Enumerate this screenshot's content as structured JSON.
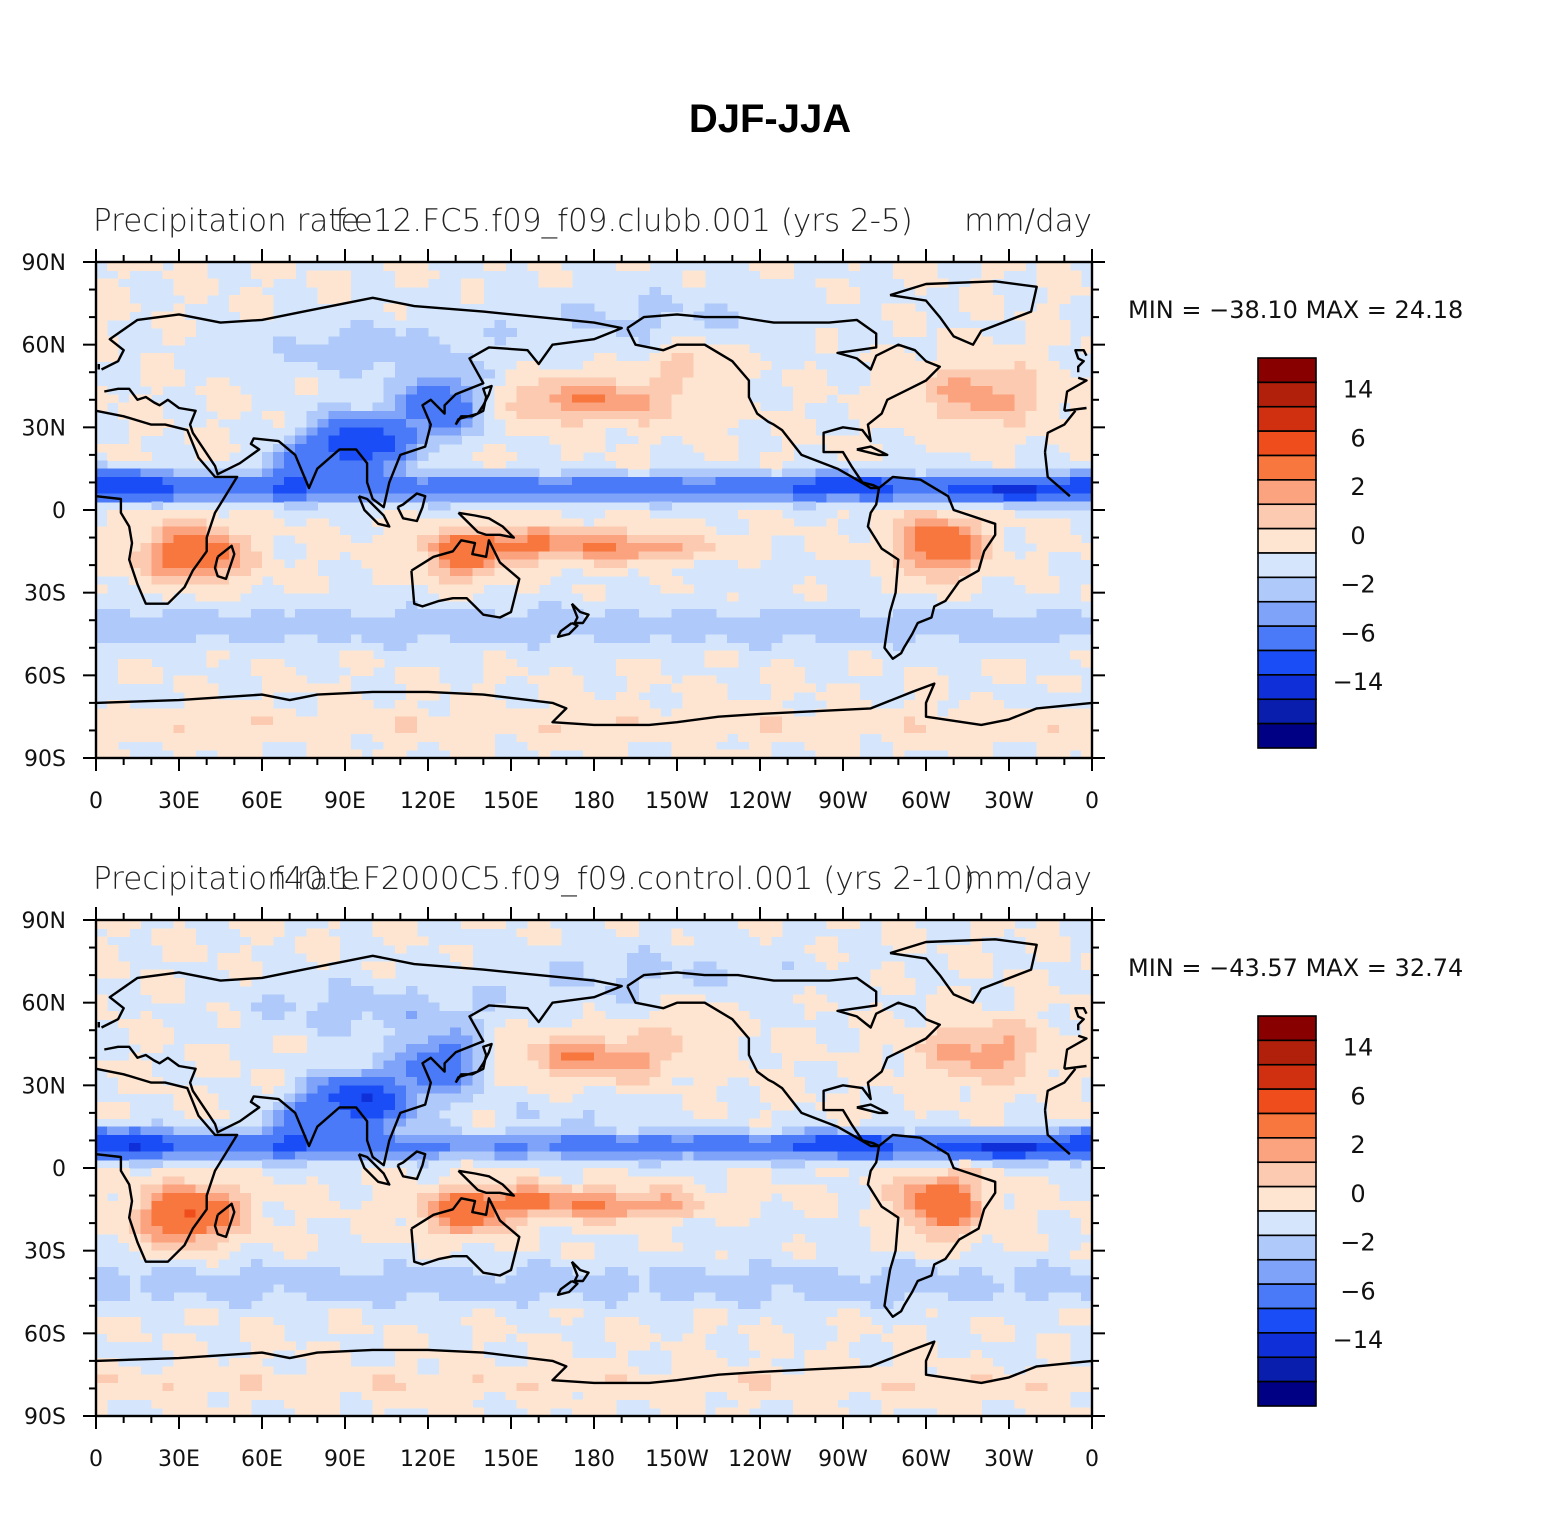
{
  "figure_title": "DJF-JJA",
  "colors": {
    "palette": [
      "#000085",
      "#0A1EAD",
      "#0F30D8",
      "#1A4DF5",
      "#4A7AF8",
      "#7EA3F8",
      "#AFC9FA",
      "#D5E6FC",
      "#FDE5D2",
      "#FCCAB0",
      "#FBA27E",
      "#F7773E",
      "#EF4E1C",
      "#D0300F",
      "#B0200A",
      "#880000"
    ],
    "land_outline": "#000000"
  },
  "panels": [
    {
      "left_title": "Precipitation rate",
      "center_title": "f.e12.FC5.f09_f09.clubb.001 (yrs 2-5)",
      "right_title": "mm/day",
      "min_label": "MIN =",
      "min_value": "−38.10",
      "max_label": "MAX =",
      "max_value": "24.18",
      "min": -38.1,
      "max": 24.18
    },
    {
      "left_title": "Precipitation rate",
      "center_title": "f40.1.F2000C5.f09_f09.control.001 (yrs 2-10)",
      "right_title": "mm/day",
      "min_label": "MIN =",
      "min_value": "−43.57",
      "max_label": "MAX =",
      "max_value": "32.74",
      "min": -43.57,
      "max": 32.74
    }
  ],
  "lat_ticks": [
    "90N",
    "60N",
    "30N",
    "0",
    "30S",
    "60S",
    "90S"
  ],
  "lon_ticks": [
    "0",
    "30E",
    "60E",
    "90E",
    "120E",
    "150E",
    "180",
    "150W",
    "120W",
    "90W",
    "60W",
    "30W",
    "0"
  ],
  "colorbar_labels": [
    "14",
    "6",
    "2",
    "0",
    "−2",
    "−6",
    "−14"
  ],
  "chart_data": [
    {
      "type": "heatmap",
      "projection": "cylindrical-equidistant",
      "title": "f.e12.FC5.f09_f09.clubb.001 (yrs 2-5)",
      "variable": "Precipitation rate",
      "units": "mm/day",
      "lon_range": [
        0,
        360
      ],
      "lat_range": [
        -90,
        90
      ],
      "colorbar_levels": [
        -14,
        -6,
        -2,
        0,
        2,
        6,
        14
      ],
      "min": -38.1,
      "max": 24.18
    },
    {
      "type": "heatmap",
      "projection": "cylindrical-equidistant",
      "title": "f40.1.F2000C5.f09_f09.control.001 (yrs 2-10)",
      "variable": "Precipitation rate",
      "units": "mm/day",
      "lon_range": [
        0,
        360
      ],
      "lat_range": [
        -90,
        90
      ],
      "colorbar_levels": [
        -14,
        -6,
        -2,
        0,
        2,
        6,
        14
      ],
      "min": -43.57,
      "max": 32.74
    }
  ]
}
